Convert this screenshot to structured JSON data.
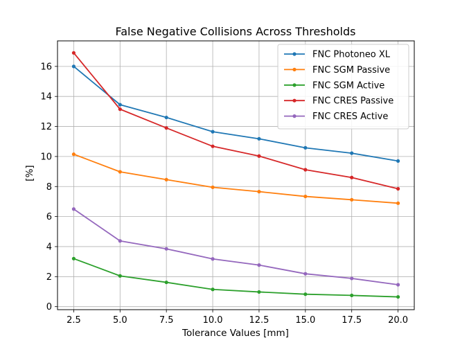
{
  "chart_data": {
    "type": "line",
    "title": "False Negative Collisions Across Thresholds",
    "xlabel": "Tolerance Values [mm]",
    "ylabel": "[%]",
    "x": [
      2.5,
      5.0,
      7.5,
      10.0,
      12.5,
      15.0,
      17.5,
      20.0
    ],
    "x_tick_labels": [
      "2.5",
      "5.0",
      "7.5",
      "10.0",
      "12.5",
      "15.0",
      "17.5",
      "20.0"
    ],
    "y_ticks": [
      0,
      2,
      4,
      6,
      8,
      10,
      12,
      14,
      16
    ],
    "xlim": [
      1.625,
      20.875
    ],
    "ylim": [
      -0.2,
      17.7
    ],
    "grid": true,
    "legend_position": "top-right",
    "series": [
      {
        "name": "FNC Photoneo XL",
        "color": "#1f77b4",
        "values": [
          16.0,
          13.45,
          12.6,
          11.65,
          11.18,
          10.58,
          10.22,
          9.7
        ]
      },
      {
        "name": "FNC SGM Passive",
        "color": "#ff7f0e",
        "values": [
          10.15,
          8.98,
          8.46,
          7.95,
          7.66,
          7.34,
          7.12,
          6.89
        ]
      },
      {
        "name": "FNC SGM Active",
        "color": "#2ca02c",
        "values": [
          3.2,
          2.05,
          1.62,
          1.15,
          0.98,
          0.83,
          0.75,
          0.65
        ]
      },
      {
        "name": "FNC CRES Passive",
        "color": "#d62728",
        "values": [
          16.9,
          13.15,
          11.9,
          10.68,
          10.03,
          9.12,
          8.6,
          7.85
        ]
      },
      {
        "name": "FNC CRES Active",
        "color": "#9467bd",
        "values": [
          6.5,
          4.38,
          3.85,
          3.18,
          2.77,
          2.19,
          1.88,
          1.46
        ]
      }
    ]
  }
}
